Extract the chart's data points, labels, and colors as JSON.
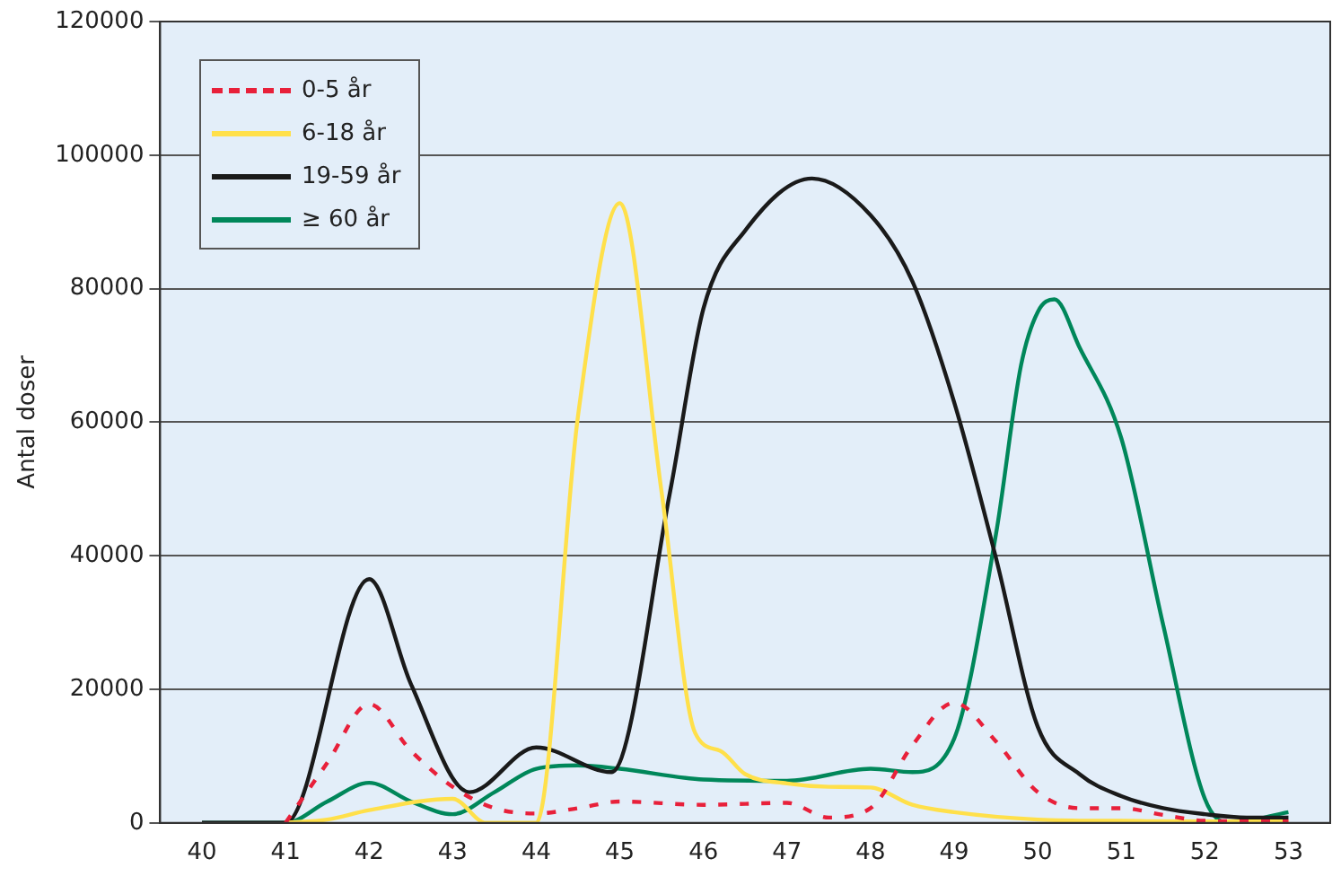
{
  "chart_data": {
    "type": "line",
    "ylabel": "Antal doser",
    "xlim": [
      39.5,
      53.5
    ],
    "xticks": [
      40,
      41,
      42,
      43,
      44,
      45,
      46,
      47,
      48,
      49,
      50,
      51,
      52,
      53
    ],
    "ylim": [
      0,
      120000
    ],
    "yticks": [
      0,
      20000,
      40000,
      60000,
      80000,
      100000,
      120000
    ],
    "grid": "y",
    "legend": "top left",
    "marker": "none",
    "series": [
      {
        "name": "0-5 år",
        "color": "#e8203a",
        "line_style": "dashed",
        "x": [
          41,
          41.5,
          42,
          42.5,
          43,
          43.5,
          44,
          44.5,
          45,
          46,
          47,
          47.5,
          48,
          48.5,
          49,
          49.5,
          50,
          50.5,
          51,
          51.5,
          52,
          53
        ],
        "values": [
          0,
          9000,
          17800,
          10800,
          5400,
          2200,
          1400,
          2200,
          3200,
          2700,
          3000,
          800,
          2200,
          11600,
          18000,
          12200,
          4600,
          2200,
          2200,
          1200,
          300,
          200
        ]
      },
      {
        "name": "6-18 år",
        "color": "#ffe04a",
        "line_style": "solid",
        "x": [
          41,
          41.5,
          42,
          43,
          43.4,
          44,
          44.5,
          45,
          45.5,
          45.9,
          46.2,
          46.5,
          47,
          47.5,
          48,
          48.5,
          49,
          50,
          51,
          52,
          53
        ],
        "values": [
          0,
          500,
          1900,
          3600,
          0,
          0,
          61000,
          92800,
          49500,
          13500,
          10800,
          7300,
          5900,
          5400,
          5300,
          2700,
          1600,
          500,
          300,
          200,
          200
        ]
      },
      {
        "name": "19-59 år",
        "color": "#1a1a1a",
        "line_style": "solid",
        "x": [
          40,
          41,
          42,
          42.5,
          43.2,
          44,
          44.9,
          45.6,
          46,
          46.5,
          47.3,
          48,
          48.5,
          49,
          49.5,
          50,
          50.5,
          51,
          51.5,
          52,
          52.5,
          53
        ],
        "values": [
          0,
          0,
          36500,
          20800,
          4600,
          11300,
          7600,
          49500,
          77000,
          88700,
          96500,
          91000,
          81100,
          63000,
          39700,
          14400,
          7300,
          4000,
          2200,
          1300,
          800,
          800
        ]
      },
      {
        "name": "≥ 60 år",
        "color": "#00875a",
        "line_style": "solid",
        "x": [
          40,
          41,
          41.5,
          42,
          42.5,
          43,
          43.5,
          44,
          44.5,
          45,
          46,
          47,
          48,
          48.5,
          49,
          49.5,
          49.8,
          50,
          50.2,
          50.5,
          51,
          51.5,
          52,
          52.3,
          53
        ],
        "values": [
          0,
          0,
          3200,
          6000,
          3200,
          1300,
          4600,
          8100,
          8600,
          8100,
          6500,
          6300,
          8100,
          7600,
          12600,
          43200,
          68500,
          76500,
          78400,
          71200,
          57600,
          29700,
          3600,
          0,
          1600
        ]
      }
    ]
  }
}
